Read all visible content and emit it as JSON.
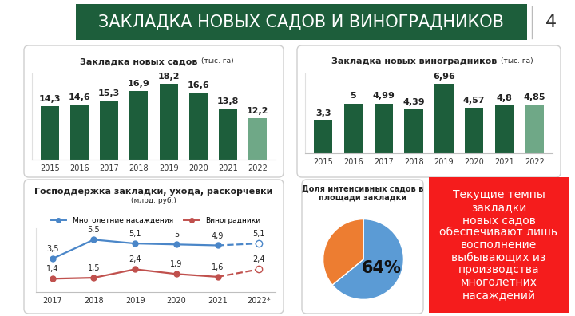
{
  "header": {
    "title": "ЗАКЛАДКА НОВЫХ САДОВ И ВИНОГРАДНИКОВ",
    "page": "4"
  },
  "chart_data": [
    {
      "type": "bar",
      "title": "Закладка новых садов",
      "subtitle": "(тыс. га)",
      "categories": [
        "2015",
        "2016",
        "2017",
        "2018",
        "2019",
        "2020",
        "2021",
        "2022"
      ],
      "values": [
        14.3,
        14.6,
        15.3,
        16.9,
        18.2,
        16.6,
        13.8,
        12.2
      ],
      "value_labels": [
        "14,3",
        "14,6",
        "15,3",
        "16,9",
        "18,2",
        "16,6",
        "13,8",
        "12,2"
      ],
      "colors": [
        "#1d5e3b",
        "#1d5e3b",
        "#1d5e3b",
        "#1d5e3b",
        "#1d5e3b",
        "#1d5e3b",
        "#1d5e3b",
        "#6fa887"
      ],
      "ylim": [
        5,
        20
      ],
      "data_labels": true,
      "tick_labels": "x",
      "grid": false
    },
    {
      "type": "bar",
      "title": "Закладка новых виноградников",
      "subtitle": "(тыс. га)",
      "categories": [
        "2015",
        "2016",
        "2017",
        "2018",
        "2019",
        "2020",
        "2021",
        "2022"
      ],
      "values": [
        3.3,
        5,
        4.99,
        4.39,
        6.96,
        4.57,
        4.8,
        4.85
      ],
      "value_labels": [
        "3,3",
        "5",
        "4,99",
        "4,39",
        "6,96",
        "4,57",
        "4,8",
        "4,85"
      ],
      "colors": [
        "#1d5e3b",
        "#1d5e3b",
        "#1d5e3b",
        "#1d5e3b",
        "#1d5e3b",
        "#1d5e3b",
        "#1d5e3b",
        "#6fa887"
      ],
      "ylim": [
        0,
        8
      ],
      "data_labels": true,
      "tick_labels": "x",
      "grid": false
    },
    {
      "type": "line",
      "title": "Господдержка закладки, ухода, раскорчевки",
      "subtitle": "(млрд. руб.)",
      "categories": [
        "2017",
        "2018",
        "2019",
        "2020",
        "2021",
        "2022*"
      ],
      "series": [
        {
          "name": "Многолетние насаждения",
          "color": "#4a86c8",
          "marker": "o",
          "line_style": "solid",
          "values": [
            3.5,
            5.5,
            5.1,
            5,
            4.9,
            5.1
          ],
          "value_labels": [
            "3,5",
            "5,5",
            "5,1",
            "5",
            "4,9",
            "5,1"
          ]
        },
        {
          "name": "Виноградники",
          "color": "#c0504d",
          "marker": "o",
          "line_style": "solid",
          "values": [
            1.4,
            1.5,
            2.4,
            1.9,
            1.6,
            2.4
          ],
          "value_labels": [
            "1,4",
            "1,5",
            "2,4",
            "1,9",
            "1,6",
            "2,4"
          ]
        }
      ],
      "ylim": [
        0,
        6.7
      ],
      "legend": "upper center",
      "data_labels": true,
      "tick_labels": "x",
      "grid": false
    },
    {
      "type": "pie",
      "title": "Доля интенсивных садов в площади закладки",
      "values": [
        64,
        36
      ],
      "value_labels": [
        "64%",
        null
      ],
      "colors": [
        "#5b9bd5",
        "#ed7d31"
      ],
      "data_labels": true
    }
  ],
  "note": {
    "text": "Текущие темпы\nзакладки\nновых садов\nобеспечивают лишь\nвосполнение\nвыбывающих из\nпроизводства\nмноголетних\nнасаждений"
  }
}
